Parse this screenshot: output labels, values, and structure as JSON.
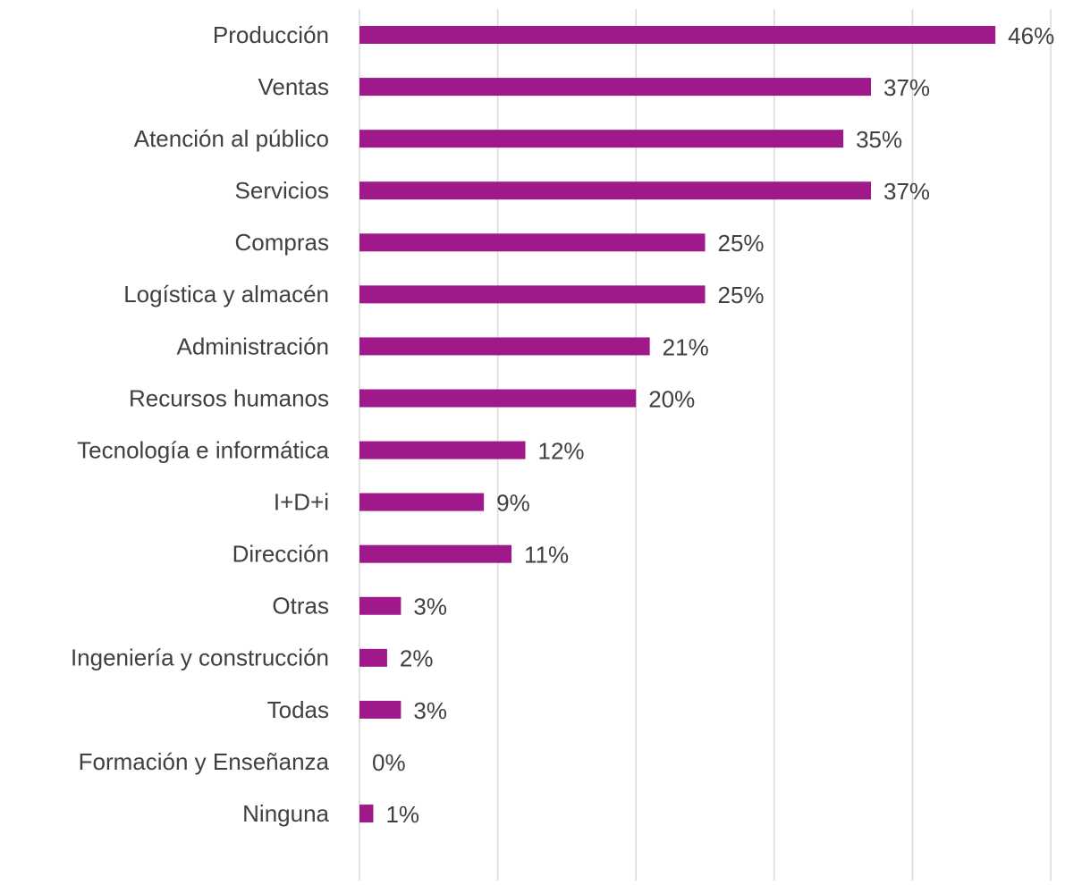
{
  "chart_data": {
    "type": "bar",
    "orientation": "horizontal",
    "categories": [
      "Producción",
      "Ventas",
      "Atención al público",
      "Servicios",
      "Compras",
      "Logística y almacén",
      "Administración",
      "Recursos humanos",
      "Tecnología e informática",
      "I+D+i",
      "Dirección",
      "Otras",
      "Ingeniería y construcción",
      "Todas",
      "Formación y Enseñanza",
      "Ninguna"
    ],
    "values": [
      46,
      37,
      35,
      37,
      25,
      25,
      21,
      20,
      12,
      9,
      11,
      3,
      2,
      3,
      0,
      1
    ],
    "value_labels": [
      "46%",
      "37%",
      "35%",
      "37%",
      "25%",
      "25%",
      "21%",
      "20%",
      "12%",
      "9%",
      "11%",
      "3%",
      "2%",
      "3%",
      "0%",
      "1%"
    ],
    "color": "#a0198a",
    "xlim": [
      0,
      50
    ],
    "xticks": [
      0,
      10,
      20,
      30,
      40,
      50
    ],
    "grid": true
  }
}
